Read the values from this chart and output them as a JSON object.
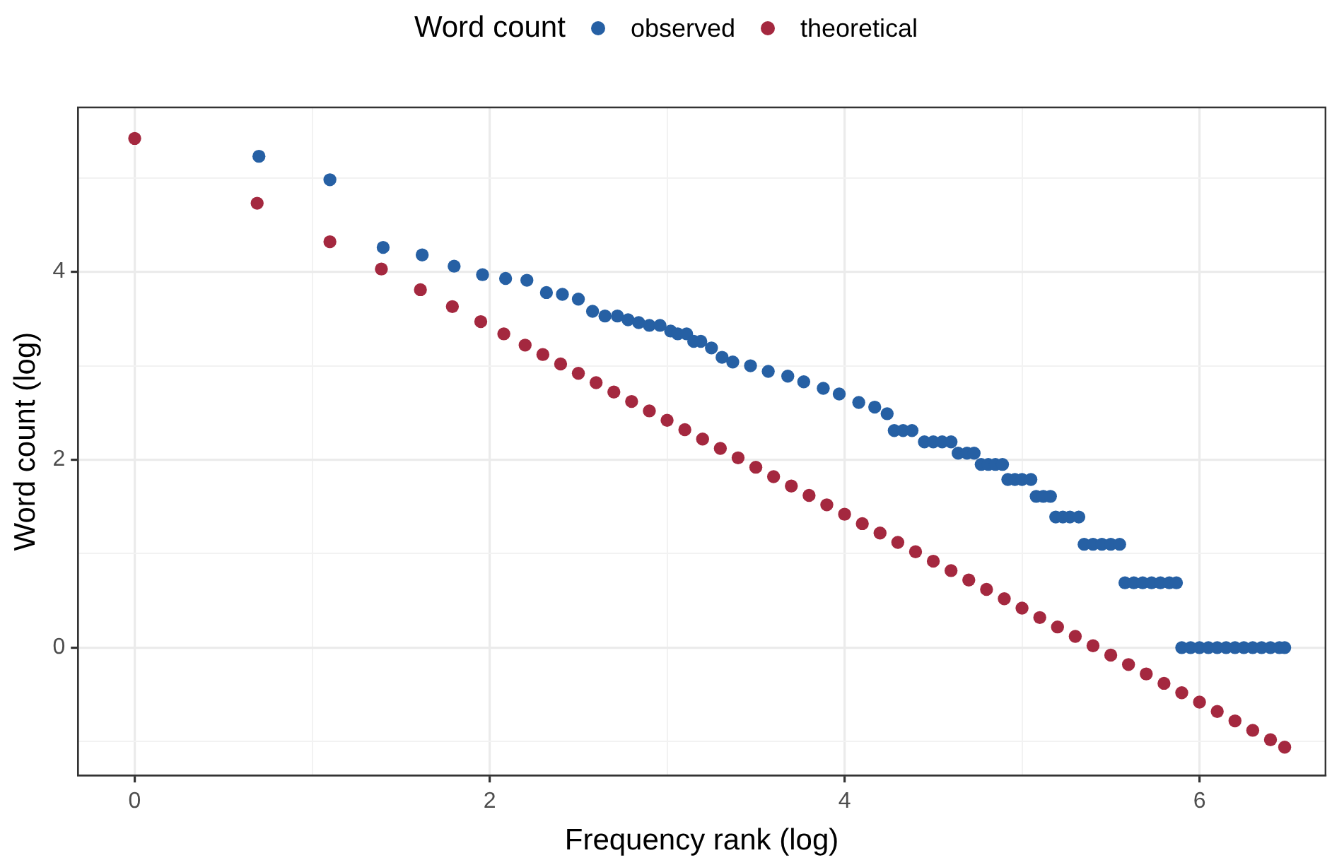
{
  "chart_data": {
    "type": "scatter",
    "xlabel": "Frequency rank (log)",
    "ylabel": "Word count (log)",
    "legend_title": "Word count",
    "legend": "top",
    "grid": true,
    "marker": "circle",
    "xlim": [
      -0.32,
      6.71
    ],
    "ylim": [
      -1.36,
      5.75
    ],
    "xticks": [
      0,
      {
        "value": 1,
        "label": null
      },
      2,
      {
        "value": 3,
        "label": null
      },
      4,
      {
        "value": 5,
        "label": null
      },
      6
    ],
    "yticks": [
      {
        "value": -1,
        "label": null
      },
      0,
      {
        "value": 1,
        "label": null
      },
      2,
      {
        "value": 3,
        "label": null
      },
      4,
      {
        "value": 5,
        "label": null
      }
    ],
    "series": [
      {
        "name": "observed",
        "color": "#2660a4",
        "x": [
          0.7,
          1.1,
          1.4,
          1.62,
          1.8,
          1.96,
          2.09,
          2.21,
          2.32,
          2.41,
          2.5,
          2.58,
          2.65,
          2.72,
          2.78,
          2.84,
          2.9,
          2.96,
          3.02,
          3.06,
          3.11,
          3.15,
          3.19,
          3.25,
          3.31,
          3.37,
          3.47,
          3.57,
          3.68,
          3.77,
          3.88,
          3.97,
          4.08,
          4.17,
          4.24,
          4.28,
          4.33,
          4.38,
          4.45,
          4.5,
          4.55,
          4.6,
          4.64,
          4.69,
          4.73,
          4.77,
          4.81,
          4.85,
          4.89,
          4.92,
          4.96,
          5.0,
          5.05,
          5.08,
          5.12,
          5.16,
          5.19,
          5.23,
          5.27,
          5.32,
          5.35,
          5.4,
          5.45,
          5.5,
          5.55,
          5.58,
          5.63,
          5.68,
          5.73,
          5.78,
          5.83,
          5.87,
          5.9,
          5.95,
          6.0,
          6.05,
          6.1,
          6.15,
          6.2,
          6.25,
          6.3,
          6.35,
          6.4,
          6.45,
          6.48
        ],
        "values": [
          5.23,
          4.98,
          4.26,
          4.18,
          4.06,
          3.97,
          3.93,
          3.91,
          3.78,
          3.76,
          3.71,
          3.58,
          3.53,
          3.53,
          3.49,
          3.46,
          3.43,
          3.43,
          3.37,
          3.34,
          3.34,
          3.26,
          3.26,
          3.19,
          3.09,
          3.04,
          3.0,
          2.94,
          2.89,
          2.83,
          2.76,
          2.7,
          2.61,
          2.56,
          2.49,
          2.31,
          2.31,
          2.31,
          2.19,
          2.19,
          2.19,
          2.19,
          2.07,
          2.07,
          2.07,
          1.95,
          1.95,
          1.95,
          1.95,
          1.79,
          1.79,
          1.79,
          1.79,
          1.61,
          1.61,
          1.61,
          1.39,
          1.39,
          1.39,
          1.39,
          1.1,
          1.1,
          1.1,
          1.1,
          1.1,
          0.69,
          0.69,
          0.69,
          0.69,
          0.69,
          0.69,
          0.69,
          0,
          0,
          0,
          0,
          0,
          0,
          0,
          0,
          0,
          0,
          0,
          0,
          0
        ]
      },
      {
        "name": "theoretical",
        "color": "#a4283f",
        "x": [
          0,
          0.69,
          1.1,
          1.39,
          1.61,
          1.79,
          1.95,
          2.08,
          2.2,
          2.3,
          2.4,
          2.5,
          2.6,
          2.7,
          2.8,
          2.9,
          3.0,
          3.1,
          3.2,
          3.3,
          3.4,
          3.5,
          3.6,
          3.7,
          3.8,
          3.9,
          4.0,
          4.1,
          4.2,
          4.3,
          4.4,
          4.5,
          4.6,
          4.7,
          4.8,
          4.9,
          5.0,
          5.1,
          5.2,
          5.3,
          5.4,
          5.5,
          5.6,
          5.7,
          5.8,
          5.9,
          6.0,
          6.1,
          6.2,
          6.3,
          6.4,
          6.48
        ],
        "values": [
          5.42,
          4.73,
          4.32,
          4.03,
          3.81,
          3.63,
          3.47,
          3.34,
          3.22,
          3.12,
          3.02,
          2.92,
          2.82,
          2.72,
          2.62,
          2.52,
          2.42,
          2.32,
          2.22,
          2.12,
          2.02,
          1.92,
          1.82,
          1.72,
          1.62,
          1.52,
          1.42,
          1.32,
          1.22,
          1.12,
          1.02,
          0.92,
          0.82,
          0.72,
          0.62,
          0.52,
          0.42,
          0.32,
          0.22,
          0.12,
          0.02,
          -0.08,
          -0.18,
          -0.28,
          -0.38,
          -0.48,
          -0.58,
          -0.68,
          -0.78,
          -0.88,
          -0.98,
          -1.06
        ]
      }
    ]
  }
}
